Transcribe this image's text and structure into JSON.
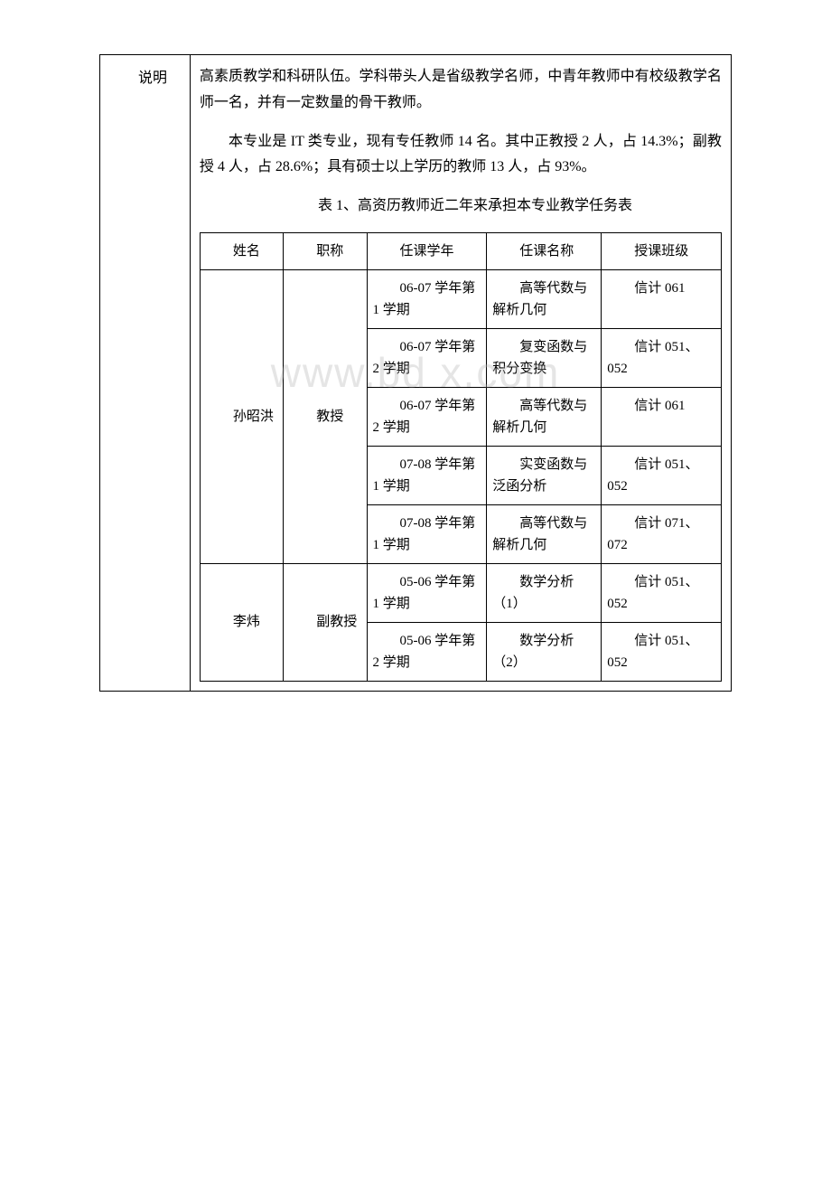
{
  "leftLabel": "说明",
  "para1": "高素质教学和科研队伍。学科带头人是省级教学名师，中青年教师中有校级教学名师一名，并有一定数量的骨干教师。",
  "para2": "本专业是 IT 类专业，现有专任教师 14 名。其中正教授 2 人，占 14.3%；副教授 4 人，占 28.6%；具有硕士以上学历的教师 13 人，占 93%。",
  "tableCaption": "表 1、高资历教师近二年来承担本专业教学任务表",
  "watermark": "www.bd   x.com",
  "headers": {
    "c1": "姓名",
    "c2": "职称",
    "c3": "任课学年",
    "c4": "任课名称",
    "c5": "授课班级"
  },
  "rows": [
    {
      "name": "孙昭洪",
      "title": "教授",
      "courses": [
        {
          "term": "06-07 学年第 1 学期",
          "course": "高等代数与解析几何",
          "class": "信计 061"
        },
        {
          "term": "06-07 学年第 2 学期",
          "course": "复变函数与积分变换",
          "class": "信计 051、052"
        },
        {
          "term": "06-07 学年第 2 学期",
          "course": "高等代数与解析几何",
          "class": "信计 061"
        },
        {
          "term": "07-08 学年第 1 学期",
          "course": "实变函数与泛函分析",
          "class": "信计 051、052"
        },
        {
          "term": "07-08 学年第 1 学期",
          "course": "高等代数与解析几何",
          "class": "信计 071、072"
        }
      ]
    },
    {
      "name": "李炜",
      "title": "副教授",
      "courses": [
        {
          "term": "05-06 学年第 1 学期",
          "course": "数学分析（1）",
          "class": "信计 051、052"
        },
        {
          "term": "05-06 学年第 2 学期",
          "course": "数学分析（2）",
          "class": "信计 051、052"
        }
      ]
    }
  ]
}
